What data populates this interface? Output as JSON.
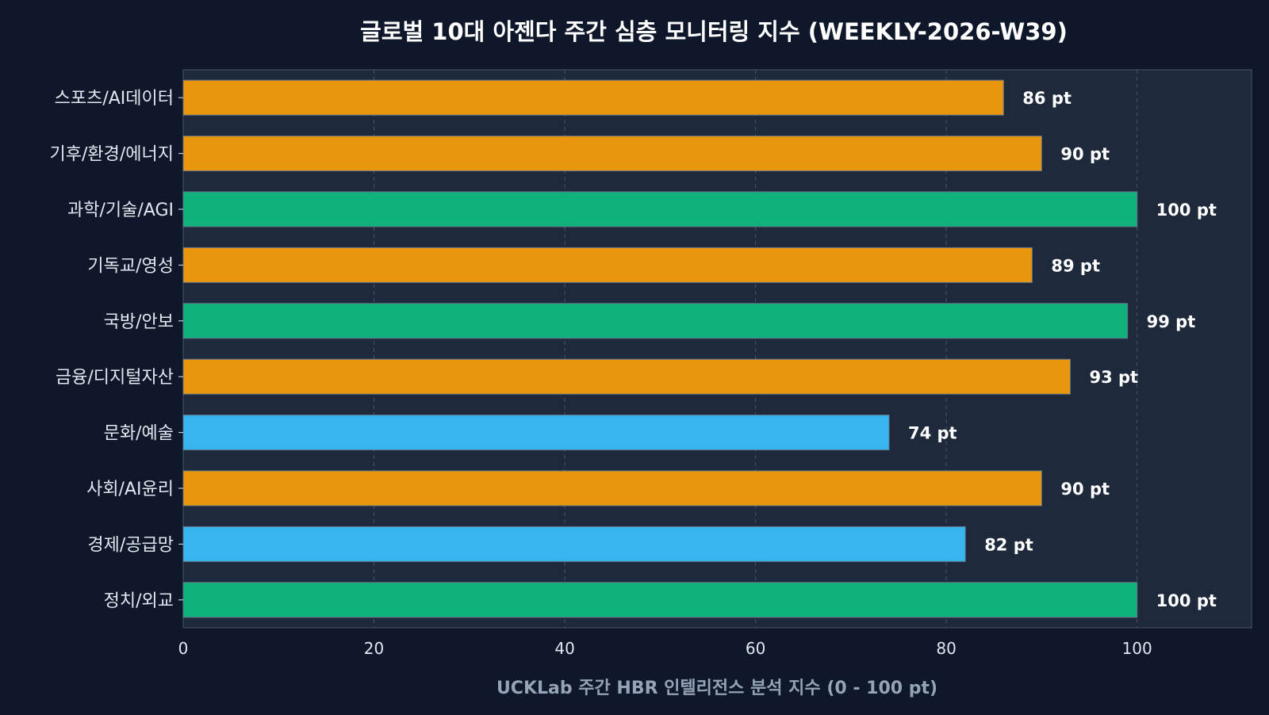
{
  "colors": {
    "page_background": "#0f172a",
    "plot_background": "#1e293b",
    "grid": "#475569",
    "axis_text": "#e2e8f0",
    "xlabel_text": "#94a3b8",
    "title_text": "#ffffff",
    "bar_border": "#64748b"
  },
  "chart_data": {
    "type": "bar",
    "orientation": "horizontal",
    "title": "글로벌 10대 아젠다 주간 심층 모니터링 지수 (WEEKLY-2026-W39)",
    "xlabel": "UCKLab 주간 HBR 인텔리전스 분석 지수 (0 - 100 pt)",
    "ylabel": "",
    "xlim": [
      0,
      112
    ],
    "xticks": [
      0,
      20,
      40,
      60,
      80,
      100
    ],
    "grid": true,
    "value_suffix": " pt",
    "categories": [
      "스포츠/AI데이터",
      "기후/환경/에너지",
      "과학/기술/AGI",
      "기독교/영성",
      "국방/안보",
      "금융/디지털자산",
      "문화/예술",
      "사회/AI윤리",
      "경제/공급망",
      "정치/외교"
    ],
    "values": [
      86,
      90,
      100,
      89,
      99,
      93,
      74,
      90,
      82,
      100
    ],
    "bar_colors": [
      "#e8970c",
      "#e8970c",
      "#10b27c",
      "#e8970c",
      "#10b27c",
      "#e8970c",
      "#38b4ee",
      "#e8970c",
      "#38b4ee",
      "#10b27c"
    ]
  }
}
